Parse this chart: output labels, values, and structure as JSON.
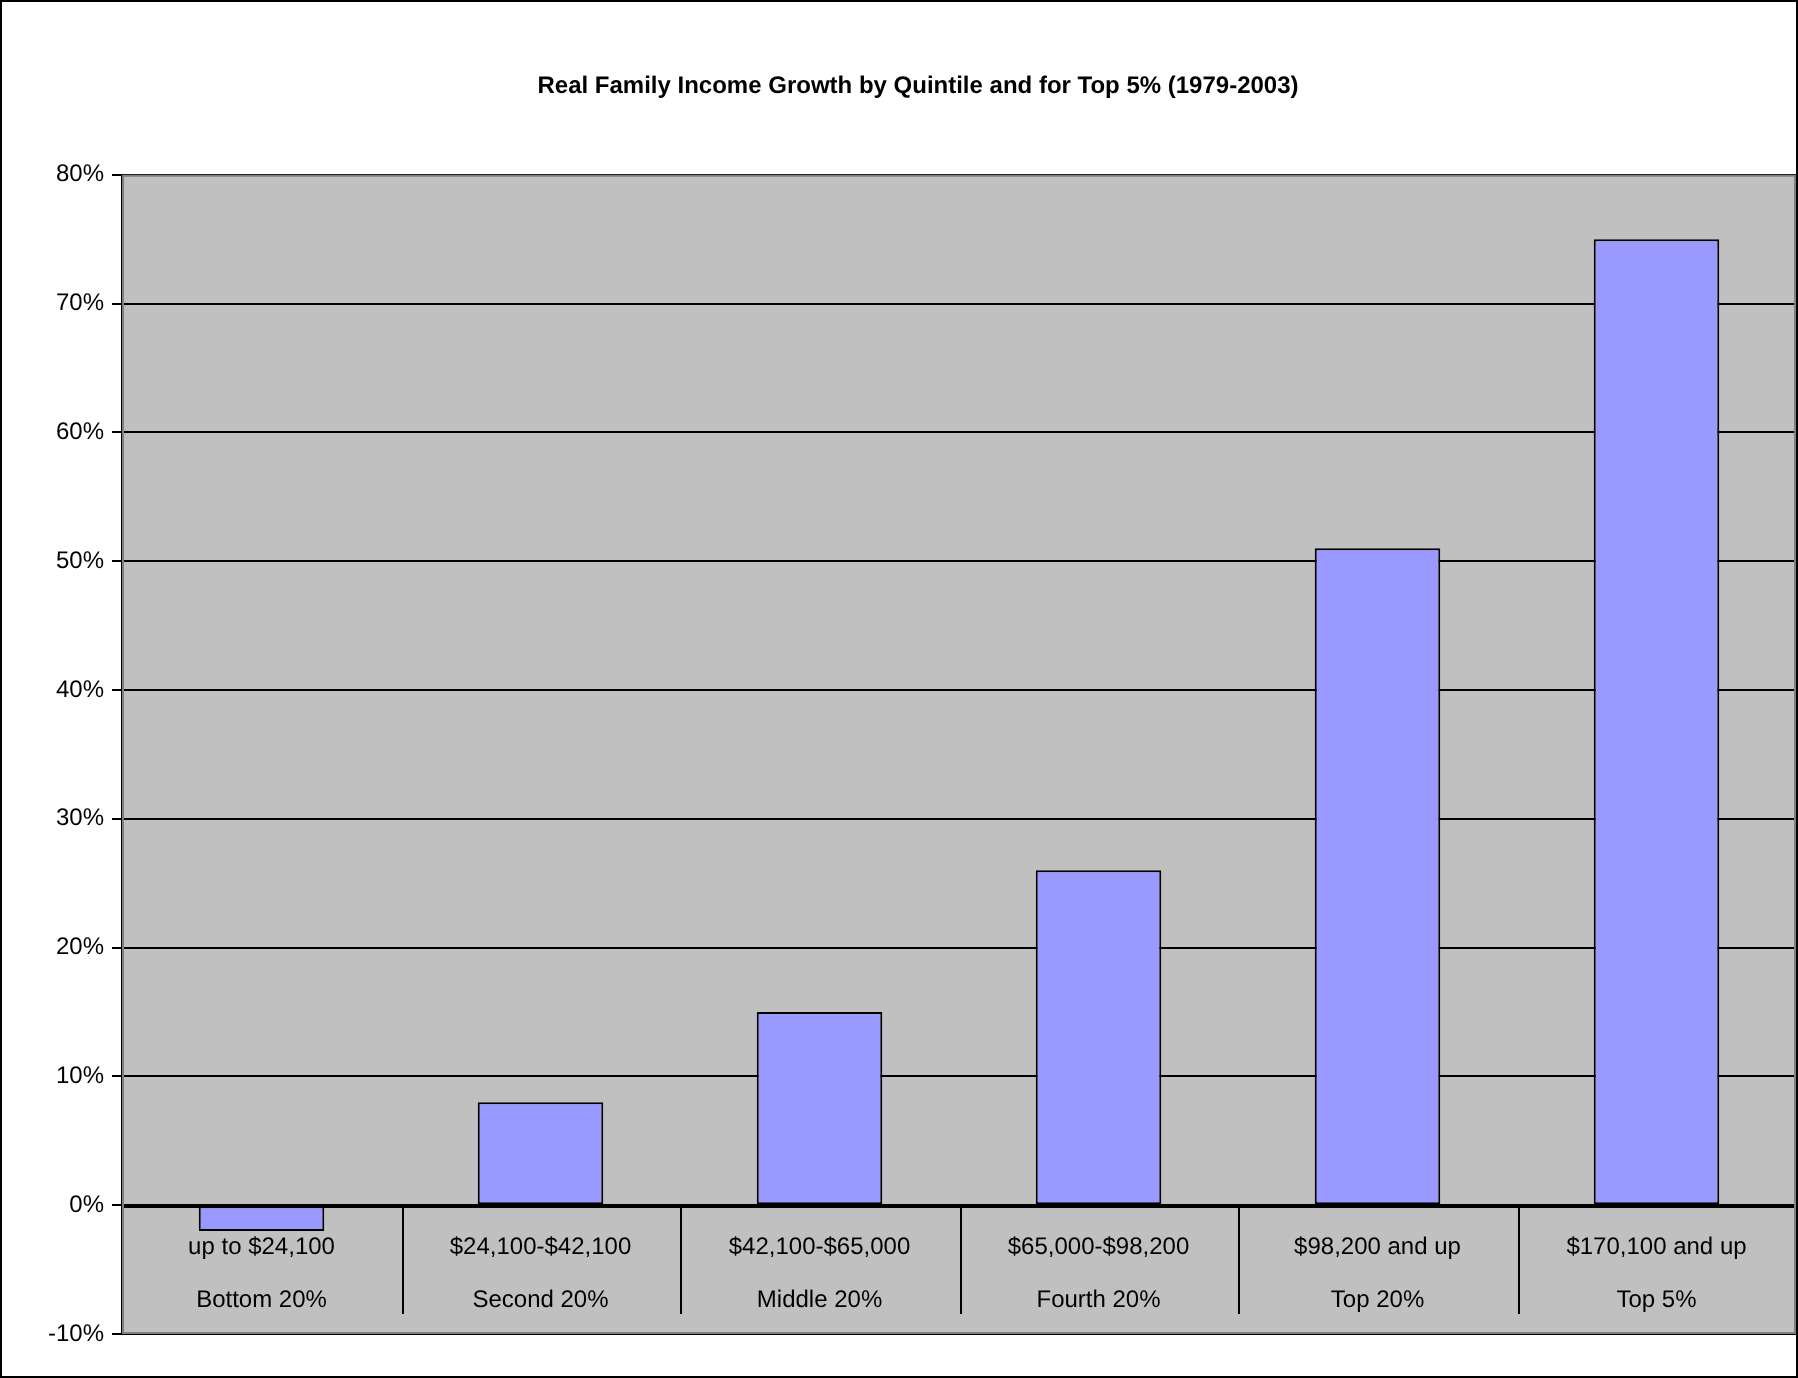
{
  "chart_data": {
    "type": "bar",
    "title": "Real Family Income Growth by Quintile and for Top 5% (1979-2003)",
    "categories": [
      "up to $24,100\nBottom 20%",
      "$24,100-$42,100\nSecond 20%",
      "$42,100-$65,000\nMiddle 20%",
      "$65,000-$98,200\nFourth 20%",
      "$98,200 and up\nTop 20%",
      "$170,100 and up\nTop 5%"
    ],
    "values": [
      -2,
      8,
      15,
      26,
      51,
      75
    ],
    "color": "#9999ff",
    "ylim": [
      -10,
      80
    ],
    "yticks": [
      {
        "value": -10,
        "label": "-10%"
      },
      {
        "value": 0,
        "label": "0%"
      },
      {
        "value": 10,
        "label": "10%"
      },
      {
        "value": 20,
        "label": "20%"
      },
      {
        "value": 30,
        "label": "30%"
      },
      {
        "value": 40,
        "label": "40%"
      },
      {
        "value": 50,
        "label": "50%"
      },
      {
        "value": 60,
        "label": "60%"
      },
      {
        "value": 70,
        "label": "70%"
      },
      {
        "value": 80,
        "label": "80%"
      }
    ],
    "grid": "y",
    "legend": false
  }
}
